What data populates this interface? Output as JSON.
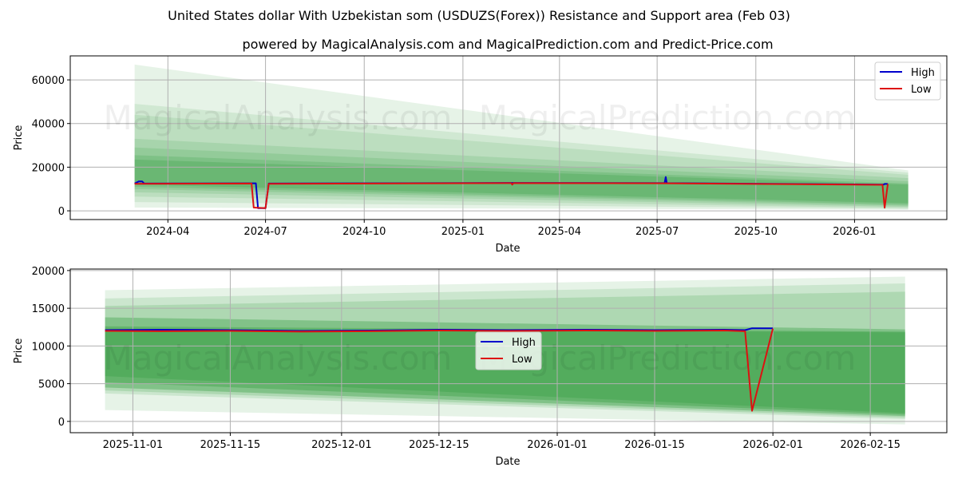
{
  "header": {
    "title": "United States dollar With Uzbekistan som (USDUZS(Forex)) Resistance and Support area (Feb 03)",
    "subtitle": "powered by MagicalAnalysis.com and MagicalPrediction.com and Predict-Price.com"
  },
  "watermarks": [
    "MagicalAnalysis.com",
    "MagicalPrediction.com"
  ],
  "colors": {
    "high": "#0000cc",
    "low": "#dd1111",
    "band": "#2e9a3a",
    "grid": "#b0b0b0"
  },
  "chart_data": [
    {
      "type": "line",
      "title": "",
      "xlabel": "Date",
      "ylabel": "Price",
      "x_ticks": [
        "2024-04",
        "2024-07",
        "2024-10",
        "2025-01",
        "2025-04",
        "2025-07",
        "2025-10",
        "2026-01"
      ],
      "y_ticks": [
        0,
        20000,
        40000,
        60000
      ],
      "ylim": [
        -4000,
        71000
      ],
      "xlim": [
        "2024-01-01",
        "2026-03-28"
      ],
      "grid": true,
      "legend": {
        "position": "upper right",
        "entries": [
          "High",
          "Low"
        ]
      },
      "band_x": [
        "2024-03-01",
        "2026-02-20"
      ],
      "bands": [
        {
          "top": [
            67000,
            18500
          ],
          "bottom": [
            1500,
            500
          ],
          "opacity": 0.12
        },
        {
          "top": [
            49000,
            17500
          ],
          "bottom": [
            4000,
            900
          ],
          "opacity": 0.12
        },
        {
          "top": [
            44000,
            16500
          ],
          "bottom": [
            6500,
            1300
          ],
          "opacity": 0.12
        },
        {
          "top": [
            33000,
            15000
          ],
          "bottom": [
            8500,
            1800
          ],
          "opacity": 0.14
        },
        {
          "top": [
            29000,
            13500
          ],
          "bottom": [
            10000,
            2300
          ],
          "opacity": 0.16
        },
        {
          "top": [
            25500,
            12500
          ],
          "bottom": [
            11000,
            2800
          ],
          "opacity": 0.2
        },
        {
          "top": [
            23500,
            12000
          ],
          "bottom": [
            12000,
            3500
          ],
          "opacity": 0.25
        }
      ],
      "series": [
        {
          "name": "High",
          "x": [
            "2024-03-01",
            "2024-03-05",
            "2024-03-08",
            "2024-03-10",
            "2024-06-18",
            "2024-06-22",
            "2024-06-24",
            "2024-07-01",
            "2024-07-04",
            "2025-02-15",
            "2025-07-08",
            "2025-07-09",
            "2025-07-10",
            "2026-01-28",
            "2026-01-29",
            "2026-02-01"
          ],
          "y": [
            12500,
            13500,
            13500,
            12500,
            12600,
            12600,
            1200,
            1200,
            12500,
            12800,
            12700,
            15500,
            12700,
            12000,
            12300,
            12300
          ]
        },
        {
          "name": "Low",
          "x": [
            "2024-03-01",
            "2024-06-18",
            "2024-06-20",
            "2024-07-01",
            "2024-07-04",
            "2025-02-15",
            "2025-02-16",
            "2025-02-17",
            "2025-07-08",
            "2026-01-27",
            "2026-01-29",
            "2026-02-01"
          ],
          "y": [
            12400,
            12500,
            1500,
            1200,
            12400,
            12700,
            12000,
            12700,
            12600,
            11900,
            1400,
            12300
          ]
        }
      ]
    },
    {
      "type": "line",
      "title": "",
      "xlabel": "Date",
      "ylabel": "Price",
      "x_ticks": [
        "2025-11-01",
        "2025-11-15",
        "2025-12-01",
        "2025-12-15",
        "2026-01-01",
        "2026-01-15",
        "2026-02-01",
        "2026-02-15"
      ],
      "y_ticks": [
        0,
        5000,
        10000,
        15000,
        20000
      ],
      "ylim": [
        -1500,
        20200
      ],
      "xlim": [
        "2025-10-23",
        "2026-02-26"
      ],
      "grid": true,
      "legend": {
        "position": "center",
        "entries": [
          "High",
          "Low"
        ]
      },
      "band_x": [
        "2025-10-28",
        "2026-02-20"
      ],
      "bands": [
        {
          "top": [
            17400,
            19200
          ],
          "bottom": [
            1500,
            -400
          ],
          "opacity": 0.12
        },
        {
          "top": [
            16300,
            18300
          ],
          "bottom": [
            3700,
            300
          ],
          "opacity": 0.14
        },
        {
          "top": [
            15300,
            17200
          ],
          "bottom": [
            4100,
            500
          ],
          "opacity": 0.18
        },
        {
          "top": [
            13800,
            12200
          ],
          "bottom": [
            4500,
            700
          ],
          "opacity": 0.35
        },
        {
          "top": [
            12600,
            11900
          ],
          "bottom": [
            5200,
            900
          ],
          "opacity": 0.35
        },
        {
          "top": [
            12300,
            11800
          ],
          "bottom": [
            6000,
            1100
          ],
          "opacity": 0.3
        }
      ],
      "series": [
        {
          "name": "High",
          "x": [
            "2025-10-28",
            "2025-11-05",
            "2025-11-15",
            "2025-11-25",
            "2025-12-05",
            "2025-12-15",
            "2025-12-25",
            "2026-01-05",
            "2026-01-15",
            "2026-01-25",
            "2026-01-28",
            "2026-01-29",
            "2026-02-01"
          ],
          "y": [
            12100,
            12150,
            12100,
            12000,
            12050,
            12150,
            12100,
            12150,
            12100,
            12150,
            12100,
            12350,
            12350
          ]
        },
        {
          "name": "Low",
          "x": [
            "2025-10-28",
            "2025-11-05",
            "2025-11-15",
            "2025-11-25",
            "2025-12-05",
            "2025-12-15",
            "2025-12-25",
            "2026-01-05",
            "2026-01-15",
            "2026-01-25",
            "2026-01-28",
            "2026-01-29",
            "2026-02-01"
          ],
          "y": [
            12000,
            11950,
            12000,
            11900,
            11950,
            12050,
            12000,
            12050,
            12000,
            12050,
            11950,
            1400,
            12300
          ]
        }
      ]
    }
  ]
}
